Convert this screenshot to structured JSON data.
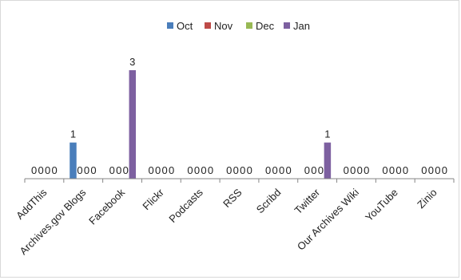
{
  "chart_data": {
    "type": "bar",
    "title": "",
    "xlabel": "",
    "ylabel": "",
    "ylim": [
      0,
      3
    ],
    "grid": false,
    "legend_position": "top",
    "categories": [
      "AddThis",
      "Archives.gov Blogs",
      "Facebook",
      "Flickr",
      "Podcasts",
      "RSS",
      "Scribd",
      "Twitter",
      "Our Archives Wiki",
      "YouTube",
      "Zinio"
    ],
    "series": [
      {
        "name": "Oct",
        "color": "#4a7ebb",
        "values": [
          0,
          1,
          0,
          0,
          0,
          0,
          0,
          0,
          0,
          0,
          0
        ]
      },
      {
        "name": "Nov",
        "color": "#be4b48",
        "values": [
          0,
          0,
          0,
          0,
          0,
          0,
          0,
          0,
          0,
          0,
          0
        ]
      },
      {
        "name": "Dec",
        "color": "#98b954",
        "values": [
          0,
          0,
          0,
          0,
          0,
          0,
          0,
          0,
          0,
          0,
          0
        ]
      },
      {
        "name": "Jan",
        "color": "#7d60a0",
        "values": [
          0,
          0,
          3,
          0,
          0,
          0,
          0,
          1,
          0,
          0,
          0
        ]
      }
    ]
  }
}
